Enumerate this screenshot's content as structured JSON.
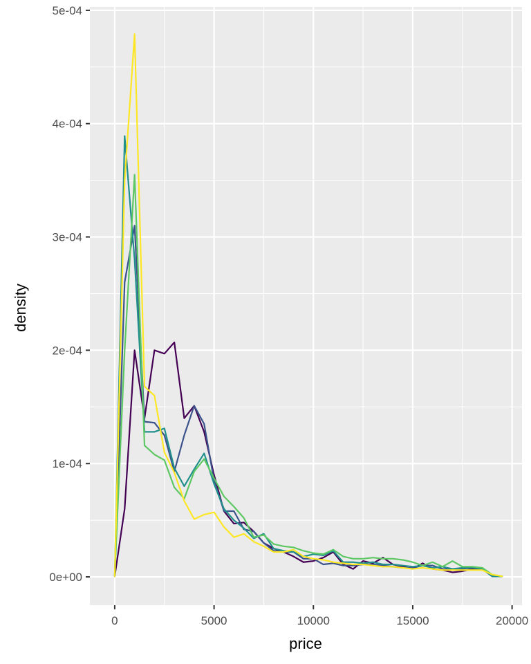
{
  "chart_data": {
    "type": "line",
    "title": "",
    "xlabel": "price",
    "ylabel": "density",
    "xlim": [
      -1250,
      20500
    ],
    "ylim": [
      -2.5e-05,
      0.000503
    ],
    "x_ticks": [
      0,
      5000,
      10000,
      15000,
      20000
    ],
    "x_tick_labels": [
      "0",
      "5000",
      "10000",
      "15000",
      "20000"
    ],
    "y_ticks": [
      0,
      0.0001,
      0.0002,
      0.0003,
      0.0004,
      0.0005
    ],
    "y_tick_labels": [
      "0e+00",
      "1e-04",
      "2e-04",
      "3e-04",
      "4e-04",
      "5e-04"
    ],
    "grid": true,
    "panel_background": "#ebebeb",
    "grid_color": "#ffffff",
    "x": [
      0,
      500,
      1000,
      1500,
      2000,
      2500,
      3000,
      3500,
      4000,
      4500,
      5000,
      5500,
      6000,
      6500,
      7000,
      7500,
      8000,
      8500,
      9000,
      9500,
      10000,
      10500,
      11000,
      11500,
      12000,
      12500,
      13000,
      13500,
      14000,
      14500,
      15000,
      15500,
      16000,
      16500,
      17000,
      17500,
      18000,
      18500,
      19000,
      19500
    ],
    "series": [
      {
        "color": "#440154",
        "values": [
          5e-07,
          6e-05,
          0.0002,
          0.00014,
          0.0002,
          0.000197,
          0.000207,
          0.00014,
          0.000151,
          0.000128,
          9e-05,
          5.8e-05,
          4.7e-05,
          4.8e-05,
          4e-05,
          3e-05,
          2.5e-05,
          2.2e-05,
          1.8e-05,
          1.3e-05,
          1.4e-05,
          1.7e-05,
          2.2e-05,
          1.1e-05,
          7e-06,
          1.4e-05,
          1.2e-05,
          1.7e-05,
          1.1e-05,
          9e-06,
          7e-06,
          1.2e-05,
          7e-06,
          6e-06,
          4e-06,
          5e-06,
          7e-06,
          7e-06,
          5e-07,
          5e-07
        ]
      },
      {
        "color": "#3b528b",
        "values": [
          5e-07,
          0.00026,
          0.00031,
          0.000137,
          0.000136,
          0.000125,
          9.3e-05,
          0.000125,
          0.000151,
          0.000135,
          8.5e-05,
          5.8e-05,
          5.8e-05,
          4.2e-05,
          4e-05,
          3e-05,
          2.3e-05,
          2.2e-05,
          2.2e-05,
          1.6e-05,
          1.6e-05,
          1.1e-05,
          1.2e-05,
          1e-05,
          1e-05,
          1.1e-05,
          1.1e-05,
          1e-05,
          9e-06,
          8e-06,
          8e-06,
          1e-05,
          1e-05,
          7e-06,
          7e-06,
          7e-06,
          8e-06,
          7e-06,
          5e-07,
          5e-07
        ]
      },
      {
        "color": "#21908c",
        "values": [
          5e-07,
          0.000389,
          0.00028,
          0.000128,
          0.000128,
          0.000131,
          9.6e-05,
          8e-05,
          9.5e-05,
          0.000109,
          8.2e-05,
          6e-05,
          5e-05,
          4.3e-05,
          3.4e-05,
          3.8e-05,
          2.5e-05,
          2.3e-05,
          2.2e-05,
          1.8e-05,
          2e-05,
          1.9e-05,
          2.3e-05,
          1.3e-05,
          1.3e-05,
          1.2e-05,
          1.3e-05,
          1.1e-05,
          1.1e-05,
          1e-05,
          9e-06,
          1e-05,
          8e-06,
          9e-06,
          7e-06,
          8e-06,
          8e-06,
          7e-06,
          5e-07,
          5e-07
        ]
      },
      {
        "color": "#5dc863",
        "values": [
          5e-07,
          0.0002,
          0.000355,
          0.000116,
          0.000108,
          0.000103,
          7.9e-05,
          6.9e-05,
          9.3e-05,
          0.000104,
          8.7e-05,
          7.1e-05,
          6.2e-05,
          5.2e-05,
          3.5e-05,
          3.7e-05,
          2.9e-05,
          2.7e-05,
          2.6e-05,
          2.3e-05,
          2.1e-05,
          2e-05,
          2.4e-05,
          1.8e-05,
          1.6e-05,
          1.6e-05,
          1.7e-05,
          1.6e-05,
          1.6e-05,
          1.5e-05,
          1.3e-05,
          1e-05,
          1.3e-05,
          9e-06,
          1.4e-05,
          9e-06,
          9e-06,
          8e-06,
          2e-06,
          5e-07
        ]
      },
      {
        "color": "#fde725",
        "values": [
          5e-07,
          0.00035,
          0.000479,
          0.000168,
          0.00016,
          0.00011,
          9.2e-05,
          6.7e-05,
          5.1e-05,
          5.5e-05,
          5.7e-05,
          4.4e-05,
          3.5e-05,
          3.8e-05,
          3.1e-05,
          2.7e-05,
          2.2e-05,
          2.2e-05,
          2.4e-05,
          1.8e-05,
          1.6e-05,
          1.5e-05,
          1.3e-05,
          1.2e-05,
          1.1e-05,
          1.1e-05,
          1e-05,
          9e-06,
          9e-06,
          8e-06,
          7e-06,
          8e-06,
          7e-06,
          6e-06,
          6e-06,
          6e-06,
          6e-06,
          6e-06,
          2e-06,
          5e-07
        ]
      }
    ]
  }
}
